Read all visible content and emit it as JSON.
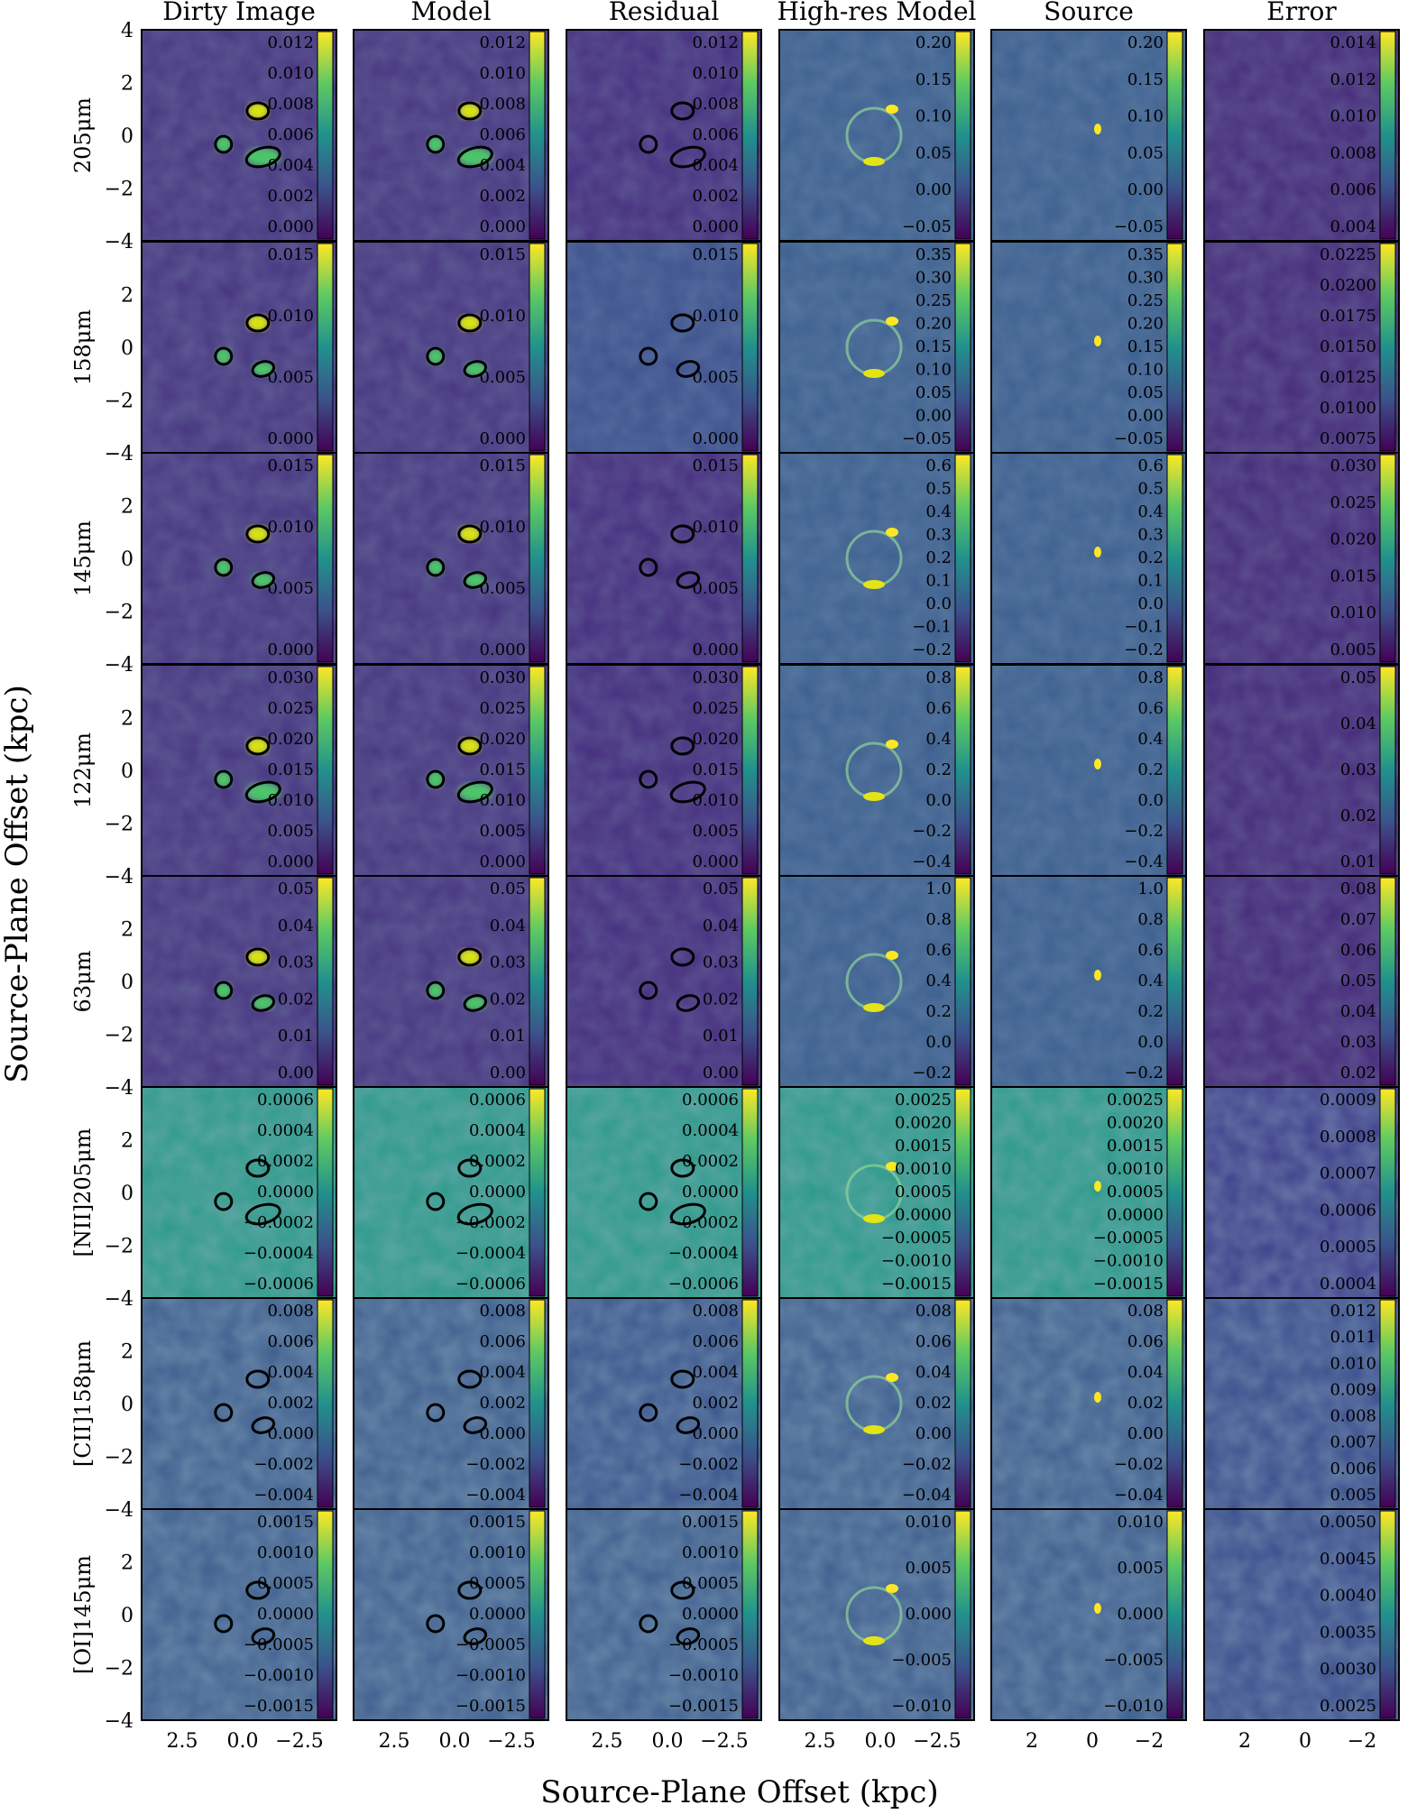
{
  "figure": {
    "column_titles": [
      "Dirty Image",
      "Model",
      "Residual",
      "High-res Model",
      "Source",
      "Error"
    ],
    "row_labels": [
      "205μm",
      "158μm",
      "145μm",
      "122μm",
      "63μm",
      "[NII]205μm",
      "[CII]158μm",
      "[OI]145μm"
    ],
    "xlabel": "Source-Plane Offset (kpc)",
    "ylabel": "Source-Plane Offset (kpc)",
    "y_ticks": [
      "4",
      "2",
      "0",
      "−2",
      "−4"
    ],
    "x_ticks_groups": [
      [
        "2.5",
        "0.0",
        "−2.5"
      ],
      [
        "2.5",
        "0.0",
        "−2.5"
      ],
      [
        "2.5",
        "0.0",
        "−2.5"
      ],
      [
        "2.5",
        "0.0",
        "−2.5"
      ],
      [
        "2",
        "0",
        "−2"
      ],
      [
        "2",
        "0",
        "−2"
      ]
    ],
    "colorbar_ticks": [
      [
        [
          "0.012",
          "0.010",
          "0.008",
          "0.006",
          "0.004",
          "0.002",
          "0.000"
        ],
        [
          "0.012",
          "0.010",
          "0.008",
          "0.006",
          "0.004",
          "0.002",
          "0.000"
        ],
        [
          "0.012",
          "0.010",
          "0.008",
          "0.006",
          "0.004",
          "0.002",
          "0.000"
        ],
        [
          "0.20",
          "0.15",
          "0.10",
          "0.05",
          "0.00",
          "−0.05"
        ],
        [
          "0.20",
          "0.15",
          "0.10",
          "0.05",
          "0.00",
          "−0.05"
        ],
        [
          "0.014",
          "0.012",
          "0.010",
          "0.008",
          "0.006",
          "0.004"
        ]
      ],
      [
        [
          "0.015",
          "0.010",
          "0.005",
          "0.000"
        ],
        [
          "0.015",
          "0.010",
          "0.005",
          "0.000"
        ],
        [
          "0.015",
          "0.010",
          "0.005",
          "0.000"
        ],
        [
          "0.35",
          "0.30",
          "0.25",
          "0.20",
          "0.15",
          "0.10",
          "0.05",
          "0.00",
          "−0.05"
        ],
        [
          "0.35",
          "0.30",
          "0.25",
          "0.20",
          "0.15",
          "0.10",
          "0.05",
          "0.00",
          "−0.05"
        ],
        [
          "0.0225",
          "0.0200",
          "0.0175",
          "0.0150",
          "0.0125",
          "0.0100",
          "0.0075"
        ]
      ],
      [
        [
          "0.015",
          "0.010",
          "0.005",
          "0.000"
        ],
        [
          "0.015",
          "0.010",
          "0.005",
          "0.000"
        ],
        [
          "0.015",
          "0.010",
          "0.005",
          "0.000"
        ],
        [
          "0.6",
          "0.5",
          "0.4",
          "0.3",
          "0.2",
          "0.1",
          "0.0",
          "−0.1",
          "−0.2"
        ],
        [
          "0.6",
          "0.5",
          "0.4",
          "0.3",
          "0.2",
          "0.1",
          "0.0",
          "−0.1",
          "−0.2"
        ],
        [
          "0.030",
          "0.025",
          "0.020",
          "0.015",
          "0.010",
          "0.005"
        ]
      ],
      [
        [
          "0.030",
          "0.025",
          "0.020",
          "0.015",
          "0.010",
          "0.005",
          "0.000"
        ],
        [
          "0.030",
          "0.025",
          "0.020",
          "0.015",
          "0.010",
          "0.005",
          "0.000"
        ],
        [
          "0.030",
          "0.025",
          "0.020",
          "0.015",
          "0.010",
          "0.005",
          "0.000"
        ],
        [
          "0.8",
          "0.6",
          "0.4",
          "0.2",
          "0.0",
          "−0.2",
          "−0.4"
        ],
        [
          "0.8",
          "0.6",
          "0.4",
          "0.2",
          "0.0",
          "−0.2",
          "−0.4"
        ],
        [
          "0.05",
          "0.04",
          "0.03",
          "0.02",
          "0.01"
        ]
      ],
      [
        [
          "0.05",
          "0.04",
          "0.03",
          "0.02",
          "0.01",
          "0.00"
        ],
        [
          "0.05",
          "0.04",
          "0.03",
          "0.02",
          "0.01",
          "0.00"
        ],
        [
          "0.05",
          "0.04",
          "0.03",
          "0.02",
          "0.01",
          "0.00"
        ],
        [
          "1.0",
          "0.8",
          "0.6",
          "0.4",
          "0.2",
          "0.0",
          "−0.2"
        ],
        [
          "1.0",
          "0.8",
          "0.6",
          "0.4",
          "0.2",
          "0.0",
          "−0.2"
        ],
        [
          "0.08",
          "0.07",
          "0.06",
          "0.05",
          "0.04",
          "0.03",
          "0.02"
        ]
      ],
      [
        [
          "0.0006",
          "0.0004",
          "0.0002",
          "0.0000",
          "−0.0002",
          "−0.0004",
          "−0.0006"
        ],
        [
          "0.0006",
          "0.0004",
          "0.0002",
          "0.0000",
          "−0.0002",
          "−0.0004",
          "−0.0006"
        ],
        [
          "0.0006",
          "0.0004",
          "0.0002",
          "0.0000",
          "−0.0002",
          "−0.0004",
          "−0.0006"
        ],
        [
          "0.0025",
          "0.0020",
          "0.0015",
          "0.0010",
          "0.0005",
          "0.0000",
          "−0.0005",
          "−0.0010",
          "−0.0015"
        ],
        [
          "0.0025",
          "0.0020",
          "0.0015",
          "0.0010",
          "0.0005",
          "0.0000",
          "−0.0005",
          "−0.0010",
          "−0.0015"
        ],
        [
          "0.0009",
          "0.0008",
          "0.0007",
          "0.0006",
          "0.0005",
          "0.0004"
        ]
      ],
      [
        [
          "0.008",
          "0.006",
          "0.004",
          "0.002",
          "0.000",
          "−0.002",
          "−0.004"
        ],
        [
          "0.008",
          "0.006",
          "0.004",
          "0.002",
          "0.000",
          "−0.002",
          "−0.004"
        ],
        [
          "0.008",
          "0.006",
          "0.004",
          "0.002",
          "0.000",
          "−0.002",
          "−0.004"
        ],
        [
          "0.08",
          "0.06",
          "0.04",
          "0.02",
          "0.00",
          "−0.02",
          "−0.04"
        ],
        [
          "0.08",
          "0.06",
          "0.04",
          "0.02",
          "0.00",
          "−0.02",
          "−0.04"
        ],
        [
          "0.012",
          "0.011",
          "0.010",
          "0.009",
          "0.008",
          "0.007",
          "0.006",
          "0.005"
        ]
      ],
      [
        [
          "0.0015",
          "0.0010",
          "0.0005",
          "0.0000",
          "−0.0005",
          "−0.0010",
          "−0.0015"
        ],
        [
          "0.0015",
          "0.0010",
          "0.0005",
          "0.0000",
          "−0.0005",
          "−0.0010",
          "−0.0015"
        ],
        [
          "0.0015",
          "0.0010",
          "0.0005",
          "0.0000",
          "−0.0005",
          "−0.0010",
          "−0.0015"
        ],
        [
          "0.010",
          "0.005",
          "0.000",
          "−0.005",
          "−0.010"
        ],
        [
          "0.010",
          "0.005",
          "0.000",
          "−0.005",
          "−0.010"
        ],
        [
          "0.0050",
          "0.0045",
          "0.0040",
          "0.0035",
          "0.0030",
          "0.0025"
        ]
      ]
    ],
    "colormap": [
      "#440154",
      "#3b528b",
      "#21918c",
      "#5ec962",
      "#fde725"
    ],
    "contour_color": "#000000"
  }
}
